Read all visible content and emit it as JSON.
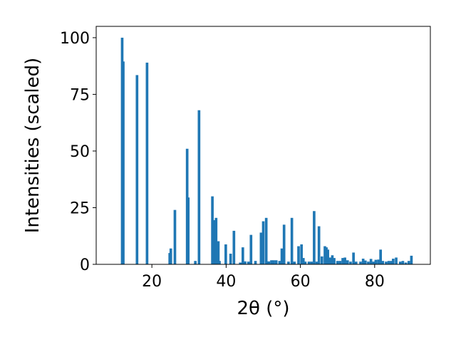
{
  "chart_data": {
    "type": "bar",
    "xlabel": "2θ (°)",
    "ylabel": "Intensities (scaled)",
    "xlim": [
      5,
      95
    ],
    "ylim": [
      0,
      105
    ],
    "xticks": [
      20,
      40,
      60,
      80
    ],
    "yticks": [
      0,
      25,
      50,
      75,
      100
    ],
    "grid": false,
    "color": "#1f77b4",
    "bar_width": 0.7,
    "x": [
      12.0,
      12.3,
      16.0,
      18.7,
      24.8,
      25.1,
      26.2,
      29.5,
      29.8,
      31.7,
      32.7,
      36.3,
      36.9,
      37.3,
      37.9,
      38.2,
      39.9,
      41.2,
      42.1,
      43.8,
      44.5,
      45.1,
      46.0,
      46.7,
      47.9,
      49.4,
      50.0,
      50.8,
      51.5,
      52.2,
      52.8,
      53.5,
      54.4,
      55.0,
      55.6,
      56.8,
      57.7,
      58.4,
      59.5,
      60.3,
      60.8,
      61.3,
      62.3,
      63.0,
      63.7,
      64.4,
      65.0,
      65.8,
      66.6,
      67.0,
      67.4,
      68.0,
      68.6,
      69.1,
      70.0,
      70.7,
      71.4,
      72.0,
      72.7,
      73.5,
      74.3,
      75.0,
      76.2,
      76.9,
      77.5,
      78.3,
      79.0,
      79.7,
      80.3,
      81.0,
      81.6,
      82.2,
      83.1,
      83.8,
      84.5,
      85.0,
      85.8,
      86.9,
      87.6,
      88.4,
      89.2,
      89.9
    ],
    "values": [
      100,
      89.5,
      83.5,
      89,
      5,
      7,
      24,
      51,
      29.5,
      1.5,
      68,
      30,
      19.5,
      20.5,
      10.2,
      1.5,
      8.8,
      4.7,
      14.8,
      0.8,
      7.5,
      1.3,
      1.2,
      13,
      1.5,
      14,
      19,
      20.5,
      1.3,
      1.8,
      1.8,
      1.8,
      1.5,
      7,
      17.5,
      1.2,
      20.5,
      1.2,
      8,
      8.8,
      2.8,
      1.2,
      1.2,
      1.2,
      23.5,
      1.2,
      16.8,
      3.5,
      8,
      7.5,
      6.5,
      3,
      4,
      2.8,
      1.5,
      1.5,
      2.8,
      3,
      1.8,
      1.2,
      5.2,
      1.2,
      1.2,
      2.5,
      1.7,
      1.2,
      2.4,
      1.2,
      2,
      2.1,
      6.5,
      1.5,
      1.2,
      1.5,
      1.5,
      2.5,
      3,
      1.2,
      1.5,
      0.8,
      1.5,
      3.8
    ]
  }
}
